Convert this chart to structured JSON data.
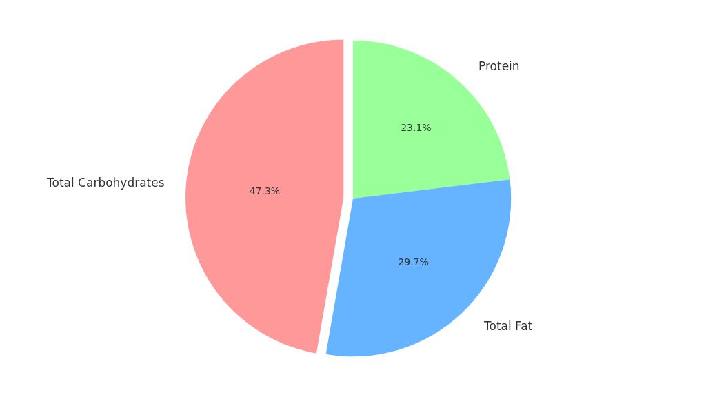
{
  "chart_data": {
    "type": "pie",
    "categories": [
      "Protein",
      "Total Fat",
      "Total Carbohydrates"
    ],
    "values": [
      23.1,
      29.7,
      47.3
    ],
    "value_labels": [
      "23.1%",
      "29.7%",
      "47.3%"
    ],
    "colors": [
      "#99ff99",
      "#66b3ff",
      "#ff9999"
    ],
    "legend": false
  }
}
